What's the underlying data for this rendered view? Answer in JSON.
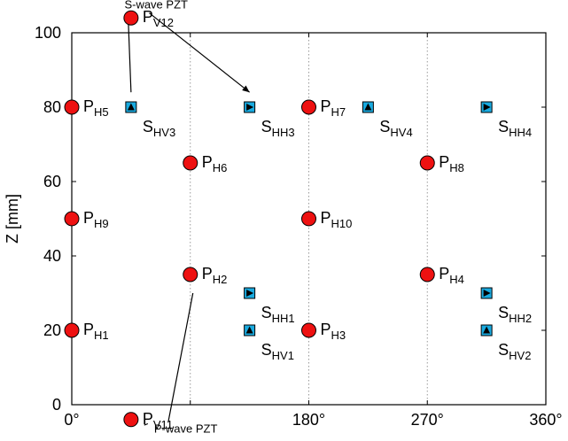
{
  "chart_data": {
    "type": "scatter",
    "ylabel": "Z [mm]",
    "xlim": [
      0,
      360
    ],
    "ylim": [
      0,
      100
    ],
    "x_ticks": [
      {
        "value": 0,
        "label": "0°"
      },
      {
        "value": 90,
        "label": ""
      },
      {
        "value": 180,
        "label": "180°"
      },
      {
        "value": 270,
        "label": "270°"
      },
      {
        "value": 360,
        "label": "360°"
      }
    ],
    "y_ticks": [
      {
        "value": 0,
        "label": "0"
      },
      {
        "value": 20,
        "label": "20"
      },
      {
        "value": 40,
        "label": "40"
      },
      {
        "value": 60,
        "label": "60"
      },
      {
        "value": 80,
        "label": "80"
      },
      {
        "value": 100,
        "label": "100"
      }
    ],
    "grid_x": [
      90,
      180,
      270
    ],
    "colors": {
      "p_wave": "#ee1111",
      "s_wave": "#19aadf"
    },
    "series": [
      {
        "marker": "circle",
        "points": [
          {
            "x": 45,
            "y": 104,
            "main": "P",
            "sub": "V12"
          },
          {
            "x": 0,
            "y": 80,
            "main": "P",
            "sub": "H5"
          },
          {
            "x": 180,
            "y": 80,
            "main": "P",
            "sub": "H7"
          },
          {
            "x": 90,
            "y": 65,
            "main": "P",
            "sub": "H6"
          },
          {
            "x": 270,
            "y": 65,
            "main": "P",
            "sub": "H8"
          },
          {
            "x": 0,
            "y": 50,
            "main": "P",
            "sub": "H9"
          },
          {
            "x": 180,
            "y": 50,
            "main": "P",
            "sub": "H10"
          },
          {
            "x": 90,
            "y": 35,
            "main": "P",
            "sub": "H2"
          },
          {
            "x": 270,
            "y": 35,
            "main": "P",
            "sub": "H4"
          },
          {
            "x": 0,
            "y": 20,
            "main": "P",
            "sub": "H1"
          },
          {
            "x": 180,
            "y": 20,
            "main": "P",
            "sub": "H3"
          },
          {
            "x": 45,
            "y": -4,
            "main": "P",
            "sub": "V11"
          }
        ]
      },
      {
        "marker": "square-triangle-up",
        "points": [
          {
            "x": 45,
            "y": 80,
            "main": "S",
            "sub": "HV3"
          },
          {
            "x": 225,
            "y": 80,
            "main": "S",
            "sub": "HV4"
          },
          {
            "x": 135,
            "y": 20,
            "main": "S",
            "sub": "HV1"
          },
          {
            "x": 315,
            "y": 20,
            "main": "S",
            "sub": "HV2"
          }
        ]
      },
      {
        "marker": "square-triangle-right",
        "points": [
          {
            "x": 135,
            "y": 80,
            "main": "S",
            "sub": "HH3"
          },
          {
            "x": 315,
            "y": 80,
            "main": "S",
            "sub": "HH4"
          },
          {
            "x": 135,
            "y": 30,
            "main": "S",
            "sub": "HH1"
          },
          {
            "x": 315,
            "y": 30,
            "main": "S",
            "sub": "HH2"
          }
        ]
      }
    ],
    "annotations": [
      {
        "text": "S-wave PZT",
        "label_xy": [
          40,
          106.5
        ],
        "targets": [
          [
            45,
            84
          ],
          [
            135,
            84
          ]
        ]
      },
      {
        "text": "P-wave PZT",
        "label_xy": [
          62.5,
          -7.5
        ],
        "targets": [
          [
            92,
            30
          ],
          [
            55,
            -5.5
          ]
        ]
      }
    ]
  }
}
